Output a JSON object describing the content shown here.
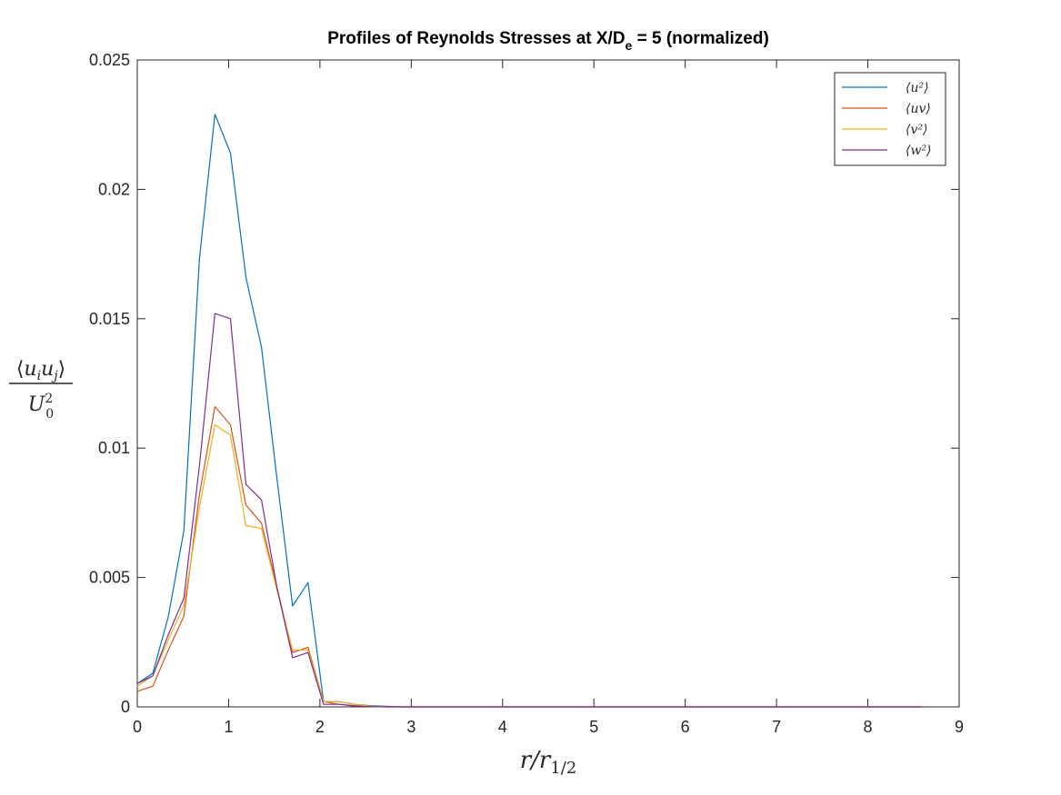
{
  "chart_data": {
    "type": "line",
    "title_parts": {
      "before_sub": "Profiles of Reynolds Stresses at X/D",
      "subscript": "e",
      "after_sub": " = 5 (normalized)"
    },
    "xlabel": "r/r1/2",
    "ylabel": "⟨uiuj⟩ / U0²",
    "xlim": [
      0,
      9
    ],
    "ylim": [
      0,
      0.025
    ],
    "xticks": [
      "0",
      "1",
      "2",
      "3",
      "4",
      "5",
      "6",
      "7",
      "8",
      "9"
    ],
    "yticks": [
      "0",
      "0.005",
      "0.01",
      "0.015",
      "0.02",
      "0.025"
    ],
    "grid": false,
    "legend_position": "top-right",
    "x": [
      0,
      0.17,
      0.34,
      0.51,
      0.68,
      0.85,
      1.02,
      1.19,
      1.36,
      1.53,
      1.7,
      1.87,
      2.04,
      2.21,
      2.38,
      2.55,
      2.72,
      2.89,
      3.06,
      3.5,
      4,
      4.5,
      5,
      5.5,
      6,
      6.5,
      7,
      7.5,
      8,
      8.59
    ],
    "series": [
      {
        "name": "⟨u²⟩",
        "color": "#0072BD",
        "values": [
          0.0009,
          0.0013,
          0.0035,
          0.0068,
          0.0173,
          0.0229,
          0.0214,
          0.0166,
          0.0139,
          0.0088,
          0.0039,
          0.0048,
          0.0002,
          0.0002,
          0.0001,
          5e-05,
          2e-05,
          0,
          0,
          0,
          0,
          0,
          0,
          0,
          0,
          0,
          0,
          0,
          0,
          0
        ]
      },
      {
        "name": "⟨uv⟩",
        "color": "#D95319",
        "values": [
          0.0006,
          0.0008,
          0.0022,
          0.0035,
          0.0082,
          0.0116,
          0.0109,
          0.0078,
          0.0071,
          0.0046,
          0.0021,
          0.0023,
          0.0002,
          0.0001,
          5e-05,
          2e-05,
          0,
          0,
          0,
          0,
          0,
          0,
          0,
          0,
          0,
          0,
          0,
          0,
          0,
          0
        ]
      },
      {
        "name": "⟨v²⟩",
        "color": "#EDB120",
        "values": [
          0.0008,
          0.0012,
          0.0026,
          0.0039,
          0.0077,
          0.0109,
          0.0105,
          0.007,
          0.0069,
          0.0045,
          0.0022,
          0.0022,
          0.0002,
          0.0002,
          0.0001,
          3e-05,
          0,
          0,
          0,
          0,
          0,
          0,
          0,
          0,
          0,
          0,
          0,
          0,
          0,
          0
        ]
      },
      {
        "name": "⟨w²⟩",
        "color": "#7E2F8E",
        "values": [
          0.0009,
          0.0012,
          0.0028,
          0.0042,
          0.0093,
          0.0152,
          0.015,
          0.0086,
          0.008,
          0.0046,
          0.0019,
          0.0021,
          0.0001,
          0.0001,
          3e-05,
          1e-05,
          0,
          0,
          0,
          0,
          0,
          0,
          0,
          0,
          0,
          0,
          0,
          0,
          0,
          0
        ]
      }
    ]
  }
}
